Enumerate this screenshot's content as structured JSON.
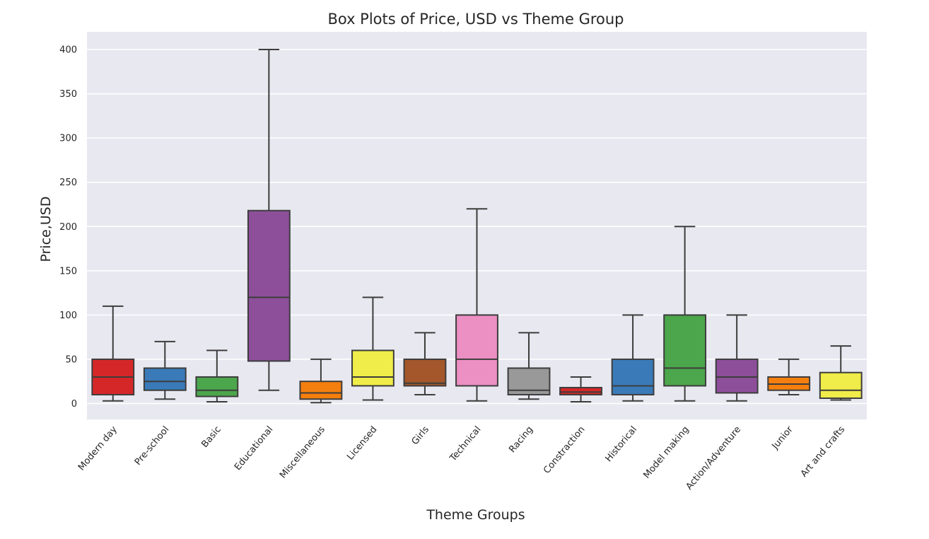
{
  "chart_data": {
    "type": "box",
    "title": "Box Plots of Price, USD vs Theme Group",
    "xlabel": "Theme Groups",
    "ylabel": "Price,USD",
    "ylim": [
      -18,
      420
    ],
    "yticks": [
      0,
      50,
      100,
      150,
      200,
      250,
      300,
      350,
      400
    ],
    "grid": true,
    "categories": [
      "Modern day",
      "Pre-school",
      "Basic",
      "Educational",
      "Miscellaneous",
      "Licensed",
      "Girls",
      "Technical",
      "Racing",
      "Constraction",
      "Historical",
      "Model making",
      "Action/Adventure",
      "Junior",
      "Art and crafts"
    ],
    "boxes": [
      {
        "whislo": 3,
        "q1": 10,
        "med": 30,
        "q3": 50,
        "whishi": 110,
        "color": "#d62728"
      },
      {
        "whislo": 5,
        "q1": 15,
        "med": 25,
        "q3": 40,
        "whishi": 70,
        "color": "#3a7ab8"
      },
      {
        "whislo": 2,
        "q1": 8,
        "med": 15,
        "q3": 30,
        "whishi": 60,
        "color": "#4ca64c"
      },
      {
        "whislo": 15,
        "q1": 48,
        "med": 120,
        "q3": 218,
        "whishi": 400,
        "color": "#8d4f9a"
      },
      {
        "whislo": 1,
        "q1": 5,
        "med": 12,
        "q3": 25,
        "whishi": 50,
        "color": "#f57f0e"
      },
      {
        "whislo": 4,
        "q1": 20,
        "med": 30,
        "q3": 60,
        "whishi": 120,
        "color": "#f0ec49"
      },
      {
        "whislo": 10,
        "q1": 20,
        "med": 23,
        "q3": 50,
        "whishi": 80,
        "color": "#a3572b"
      },
      {
        "whislo": 3,
        "q1": 20,
        "med": 50,
        "q3": 100,
        "whishi": 220,
        "color": "#ec8fc3"
      },
      {
        "whislo": 5,
        "q1": 10,
        "med": 15,
        "q3": 40,
        "whishi": 80,
        "color": "#999999"
      },
      {
        "whislo": 2,
        "q1": 10,
        "med": 13,
        "q3": 18,
        "whishi": 30,
        "color": "#d62728"
      },
      {
        "whislo": 3,
        "q1": 10,
        "med": 20,
        "q3": 50,
        "whishi": 100,
        "color": "#3a7ab8"
      },
      {
        "whislo": 3,
        "q1": 20,
        "med": 40,
        "q3": 100,
        "whishi": 200,
        "color": "#4ca64c"
      },
      {
        "whislo": 3,
        "q1": 12,
        "med": 30,
        "q3": 50,
        "whishi": 100,
        "color": "#8d4f9a"
      },
      {
        "whislo": 10,
        "q1": 15,
        "med": 22,
        "q3": 30,
        "whishi": 50,
        "color": "#f57f0e"
      },
      {
        "whislo": 4,
        "q1": 6,
        "med": 15,
        "q3": 35,
        "whishi": 65,
        "color": "#f0ec49"
      }
    ]
  }
}
